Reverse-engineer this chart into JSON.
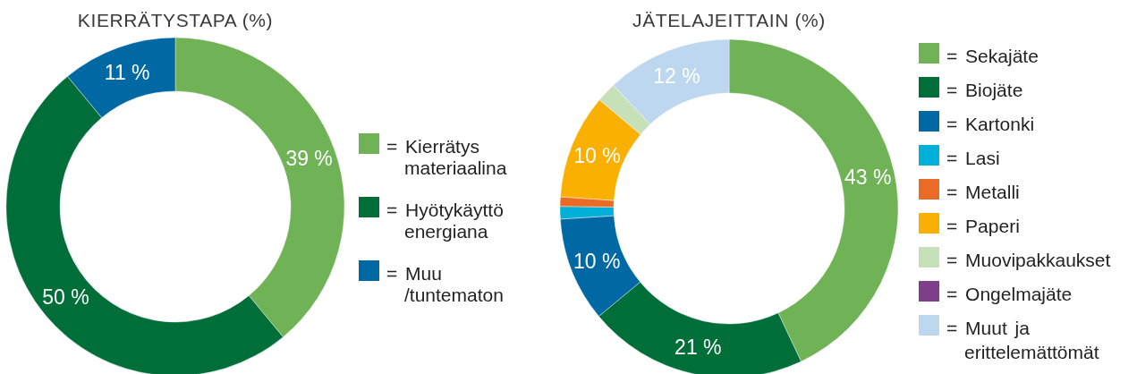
{
  "chart_data": [
    {
      "type": "donut",
      "title": "KIERRÄTYSTAPA (%)",
      "categories": [
        "= Kierrätys materiaalina",
        "= Hyötykäyttö energiana",
        "= Muu /tuntematon"
      ],
      "values": [
        39,
        50,
        11
      ],
      "colors": [
        "#70b256",
        "#006e39",
        "#0068a3"
      ],
      "value_labels": [
        "39 %",
        "50 %",
        "11 %"
      ],
      "legend": "right"
    },
    {
      "type": "donut",
      "title": "JÄTELAJEITTAIN (%)",
      "categories": [
        "= Sekajäte",
        "= Biojäte",
        "= Kartonki",
        "= Lasi",
        "= Metalli",
        "= Paperi",
        "= Muovipakkaukset",
        "= Ongelmajäte",
        "= Muut ja erittelemättömät"
      ],
      "values": [
        43,
        21,
        10,
        1.2,
        0.9,
        10,
        1.9,
        0,
        12
      ],
      "colors": [
        "#70b256",
        "#006e39",
        "#0068a3",
        "#00b0d9",
        "#e96b25",
        "#f9b000",
        "#c6e0b7",
        "#7e3f8a",
        "#bdd7ee"
      ],
      "value_labels": [
        "43 %",
        "21 %",
        "10 %",
        null,
        null,
        "10 %",
        null,
        null,
        "12 %"
      ],
      "legend": "right"
    }
  ]
}
